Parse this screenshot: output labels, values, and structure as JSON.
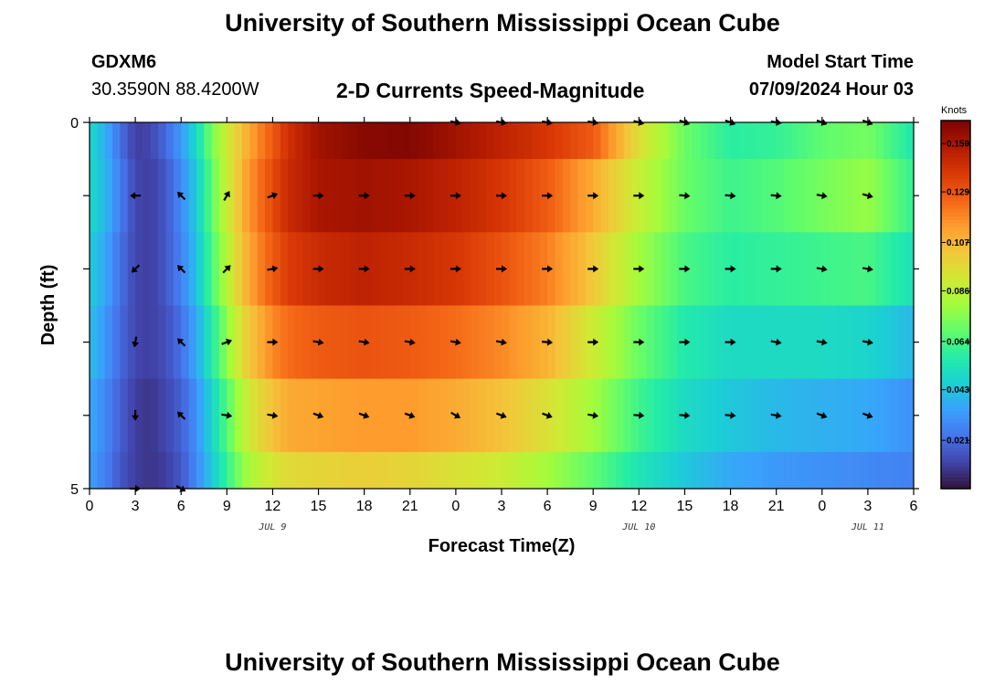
{
  "header": {
    "title": "University of Southern Mississippi Ocean Cube",
    "station_id": "GDXM6",
    "coordinates": "30.3590N  88.4200W",
    "plot_title": "2-D Currents Speed-Magnitude",
    "model_start_label": "Model Start Time",
    "model_start_value": "07/09/2024 Hour 03"
  },
  "footer": {
    "title": "University of Southern Mississippi Ocean Cube"
  },
  "chart_data": {
    "type": "heatmap",
    "title": "2-D Currents Speed-Magnitude",
    "xlabel": "Forecast Time(Z)",
    "ylabel": "Depth (ft)",
    "x_tick_labels": [
      "0",
      "3",
      "6",
      "9",
      "12",
      "15",
      "18",
      "21",
      "0",
      "3",
      "6",
      "9",
      "12",
      "15",
      "18",
      "21",
      "0",
      "3",
      "6"
    ],
    "x_range_hours": [
      0,
      54
    ],
    "y_tick_labels": [
      "0",
      "5"
    ],
    "y_range_ft": [
      0,
      5
    ],
    "date_labels": [
      {
        "label": "JUL 9",
        "hour": 12
      },
      {
        "label": "JUL 10",
        "hour": 36
      },
      {
        "label": "JUL 11",
        "hour": 51
      }
    ],
    "colorbar": {
      "label": "Knots",
      "min": 0.0,
      "max": 0.16,
      "tick_labels": [
        "0.150",
        "0.129",
        "0.107",
        "0.086",
        "0.064",
        "0.043",
        "0.021"
      ],
      "tick_values": [
        0.15,
        0.129,
        0.107,
        0.086,
        0.064,
        0.043,
        0.021
      ],
      "colors": [
        "#30123b",
        "#4145ab",
        "#4675ed",
        "#39a2fc",
        "#1bcfd4",
        "#24eca6",
        "#61fc6c",
        "#a4fc3b",
        "#d1e834",
        "#f3c63a",
        "#fe9b2d",
        "#f36315",
        "#d93806",
        "#b11901",
        "#7a0402"
      ]
    },
    "speed_anchor_hours": [
      0,
      1,
      2,
      3,
      4,
      5,
      6,
      7,
      8,
      9,
      10,
      11,
      12,
      13,
      15,
      18,
      21,
      24,
      27,
      30,
      33,
      36,
      39,
      42,
      45,
      48,
      51,
      54
    ],
    "speed_layers": [
      {
        "depth_range_ft": [
          0.0,
          0.5
        ],
        "speeds": [
          0.05,
          0.038,
          0.022,
          0.01,
          0.012,
          0.02,
          0.032,
          0.05,
          0.072,
          0.09,
          0.105,
          0.118,
          0.128,
          0.14,
          0.152,
          0.157,
          0.158,
          0.152,
          0.145,
          0.138,
          0.128,
          0.095,
          0.07,
          0.058,
          0.06,
          0.068,
          0.072,
          0.055
        ]
      },
      {
        "depth_range_ft": [
          0.5,
          1.5
        ],
        "speeds": [
          0.05,
          0.04,
          0.025,
          0.012,
          0.01,
          0.016,
          0.028,
          0.045,
          0.068,
          0.088,
          0.108,
          0.122,
          0.132,
          0.142,
          0.15,
          0.152,
          0.15,
          0.145,
          0.138,
          0.128,
          0.11,
          0.088,
          0.07,
          0.062,
          0.066,
          0.072,
          0.078,
          0.06
        ]
      },
      {
        "depth_range_ft": [
          1.5,
          2.5
        ],
        "speeds": [
          0.046,
          0.036,
          0.022,
          0.012,
          0.01,
          0.016,
          0.026,
          0.042,
          0.064,
          0.084,
          0.104,
          0.118,
          0.128,
          0.136,
          0.142,
          0.145,
          0.142,
          0.138,
          0.13,
          0.12,
          0.102,
          0.08,
          0.064,
          0.058,
          0.06,
          0.062,
          0.064,
          0.052
        ]
      },
      {
        "depth_range_ft": [
          2.5,
          3.5
        ],
        "speeds": [
          0.042,
          0.032,
          0.02,
          0.012,
          0.01,
          0.014,
          0.022,
          0.036,
          0.056,
          0.076,
          0.096,
          0.108,
          0.118,
          0.124,
          0.128,
          0.13,
          0.128,
          0.124,
          0.118,
          0.108,
          0.09,
          0.07,
          0.056,
          0.05,
          0.05,
          0.05,
          0.048,
          0.04
        ]
      },
      {
        "depth_range_ft": [
          3.5,
          4.5
        ],
        "speeds": [
          0.036,
          0.028,
          0.018,
          0.01,
          0.008,
          0.012,
          0.018,
          0.03,
          0.048,
          0.066,
          0.084,
          0.096,
          0.104,
          0.11,
          0.112,
          0.114,
          0.114,
          0.11,
          0.104,
          0.094,
          0.08,
          0.062,
          0.05,
          0.044,
          0.04,
          0.038,
          0.036,
          0.03
        ]
      },
      {
        "depth_range_ft": [
          4.5,
          5.0
        ],
        "speeds": [
          0.034,
          0.026,
          0.016,
          0.01,
          0.008,
          0.01,
          0.016,
          0.028,
          0.044,
          0.06,
          0.076,
          0.086,
          0.092,
          0.096,
          0.098,
          0.1,
          0.098,
          0.094,
          0.09,
          0.08,
          0.068,
          0.054,
          0.044,
          0.036,
          0.032,
          0.03,
          0.028,
          0.026
        ]
      }
    ],
    "vector_hours": [
      3,
      6,
      9,
      12,
      15,
      18,
      21,
      24,
      27,
      30,
      33,
      36,
      39,
      42,
      45,
      48,
      51
    ],
    "vector_rows": [
      {
        "depth_ft": 0.0,
        "visible_from_hour": 24,
        "angles_deg": [
          0,
          0,
          0,
          0,
          0,
          0,
          0,
          -10,
          -10,
          -10,
          -10,
          -15,
          -20,
          -20,
          -10,
          -20,
          -20
        ]
      },
      {
        "depth_ft": 1.0,
        "angles_deg": [
          180,
          135,
          60,
          20,
          0,
          0,
          0,
          0,
          0,
          0,
          0,
          0,
          -5,
          -5,
          -5,
          -10,
          -15
        ]
      },
      {
        "depth_ft": 2.0,
        "angles_deg": [
          225,
          135,
          45,
          10,
          0,
          0,
          0,
          0,
          0,
          0,
          0,
          0,
          0,
          0,
          0,
          -10,
          -10
        ]
      },
      {
        "depth_ft": 3.0,
        "angles_deg": [
          260,
          135,
          20,
          0,
          -10,
          -10,
          -10,
          -10,
          -10,
          -5,
          0,
          0,
          0,
          0,
          -10,
          -10,
          -10
        ]
      },
      {
        "depth_ft": 4.0,
        "angles_deg": [
          270,
          135,
          -10,
          -10,
          -20,
          -20,
          -20,
          -30,
          -20,
          -20,
          -10,
          -5,
          -5,
          -5,
          -10,
          -20,
          -20
        ]
      },
      {
        "depth_ft": 5.0,
        "visible_until_hour": 6,
        "angles_deg": [
          0,
          -30,
          0,
          0,
          0,
          0,
          0,
          0,
          0,
          0,
          0,
          0,
          0,
          0,
          0,
          0,
          0
        ]
      }
    ]
  }
}
